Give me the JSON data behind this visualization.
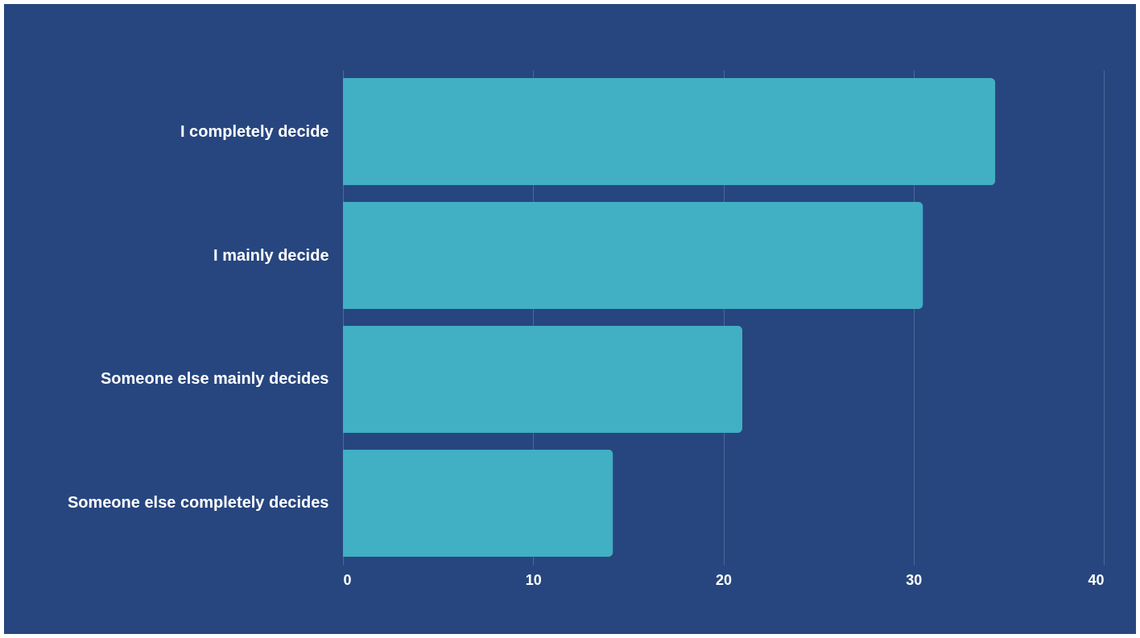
{
  "chart_data": {
    "type": "bar",
    "orientation": "horizontal",
    "categories": [
      "I completely decide",
      "I mainly decide",
      "Someone else mainly decides",
      "Someone else completely decides"
    ],
    "values": [
      34.3,
      30.5,
      21.0,
      14.2
    ],
    "color": "#41afc4",
    "xlim": [
      0,
      40
    ],
    "xticks": [
      0,
      10,
      20,
      30,
      40
    ],
    "grid": "x"
  }
}
